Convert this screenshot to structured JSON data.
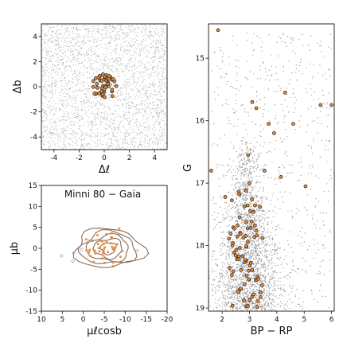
{
  "chart_data": [
    {
      "type": "scatter",
      "title": "",
      "xlabel": "Δℓ",
      "ylabel": "Δb",
      "xlim": [
        -5,
        5
      ],
      "ylim": [
        -5,
        5
      ],
      "xticks": [
        -4,
        -2,
        0,
        2,
        4
      ],
      "yticks": [
        -4,
        -2,
        0,
        2,
        4
      ],
      "series": [
        {
          "role": "field stars",
          "color": "#9a9a9a",
          "count_approx": 3000,
          "distribution": "uniform over full panel"
        },
        {
          "role": "cluster members",
          "color": "#e08a3a",
          "edge": "#222222",
          "count_approx": 45,
          "center": [
            0,
            0
          ],
          "radius": 1
        }
      ]
    },
    {
      "type": "scatter",
      "title": "Minni 80  −  Gaia",
      "xlabel": "μℓcosb",
      "ylabel": "μb",
      "xlim": [
        10,
        -20
      ],
      "ylim": [
        -15,
        15
      ],
      "xticks": [
        10,
        5,
        0,
        -5,
        -10,
        -15,
        -20
      ],
      "yticks": [
        -15,
        -10,
        -5,
        0,
        5,
        10,
        15
      ],
      "contours": {
        "color": "#8b6a58",
        "center": [
          -6,
          0
        ],
        "levels": 5
      },
      "series": [
        {
          "role": "members",
          "color": "#e08a3a",
          "count_approx": 40,
          "center": [
            -6,
            0
          ],
          "spread": [
            2.6,
            1.8
          ]
        },
        {
          "role": "outliers",
          "color": "#bbbbbb",
          "points": [
            [
              5.2,
              -1.8
            ],
            [
              2.3,
              -1.2
            ],
            [
              0.4,
              -0.3
            ],
            [
              -12.8,
              -0.6
            ],
            [
              -1.5,
              1.8
            ],
            [
              2.5,
              -3.1
            ]
          ]
        }
      ]
    },
    {
      "type": "scatter",
      "title": "",
      "xlabel": "BP − RP",
      "ylabel": "G",
      "xlim": [
        1.5,
        6.1
      ],
      "ylim": [
        19.05,
        14.45
      ],
      "xticks": [
        2,
        3,
        4,
        5,
        6
      ],
      "yticks": [
        15,
        16,
        17,
        18,
        19
      ],
      "series": [
        {
          "role": "field stars",
          "color": "#9a9a9a",
          "count_approx": 6000,
          "distribution": "dense red-clump sequence widening toward faint magnitudes"
        },
        {
          "role": "cluster members",
          "color": "#e08a3a",
          "edge": "#222222",
          "bright_points": [
            [
              1.85,
              14.55
            ],
            [
              3.1,
              15.7
            ],
            [
              4.3,
              15.55
            ],
            [
              3.25,
              15.8
            ],
            [
              5.6,
              15.75
            ],
            [
              6.0,
              15.75
            ],
            [
              3.7,
              16.05
            ],
            [
              4.6,
              16.05
            ],
            [
              3.9,
              16.2
            ],
            [
              2.95,
              16.55
            ],
            [
              3.55,
              16.8
            ],
            [
              4.15,
              16.9
            ],
            [
              1.6,
              16.8
            ],
            [
              3.0,
              17.0
            ],
            [
              5.05,
              17.05
            ]
          ],
          "faint_count_approx": 80,
          "faint_range": [
            17.1,
            19.0
          ]
        }
      ]
    }
  ]
}
